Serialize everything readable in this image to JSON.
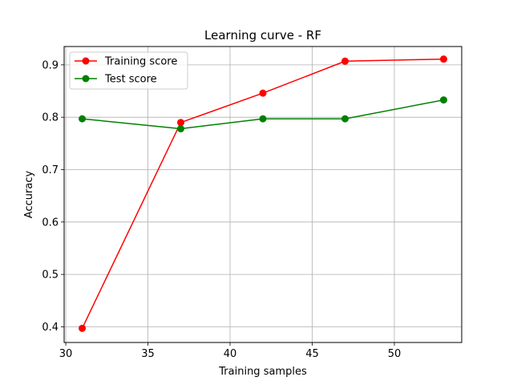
{
  "chart_data": {
    "type": "line",
    "title": "Learning curve - RF",
    "xlabel": "Training samples",
    "ylabel": "Accuracy",
    "x": [
      31,
      37,
      42,
      47,
      53
    ],
    "xlim": [
      29.9,
      54.1
    ],
    "ylim": [
      0.37,
      0.935
    ],
    "xticks": [
      30,
      35,
      40,
      45,
      50
    ],
    "yticks": [
      0.4,
      0.5,
      0.6,
      0.7,
      0.8,
      0.9
    ],
    "xtick_labels": [
      "30",
      "35",
      "40",
      "45",
      "50"
    ],
    "ytick_labels": [
      "0.4",
      "0.5",
      "0.6",
      "0.7",
      "0.8",
      "0.9"
    ],
    "grid": true,
    "legend_position": "top-left",
    "series": [
      {
        "name": "Training score",
        "color": "#ff0000",
        "values": [
          0.397,
          0.79,
          0.846,
          0.907,
          0.911
        ]
      },
      {
        "name": "Test score",
        "color": "#008000",
        "values": [
          0.797,
          0.778,
          0.797,
          0.797,
          0.833
        ]
      }
    ]
  }
}
